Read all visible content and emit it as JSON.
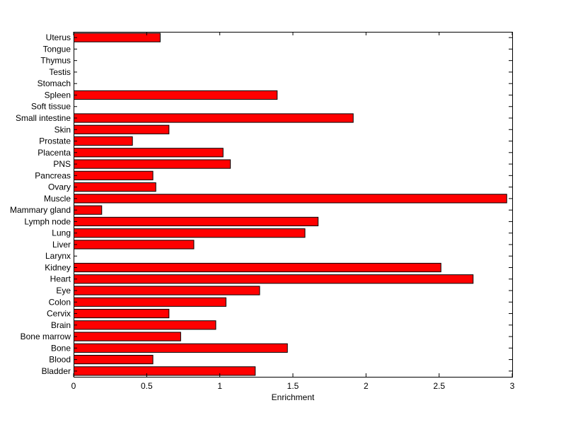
{
  "chart_data": {
    "type": "bar",
    "orientation": "horizontal",
    "title": "",
    "xlabel": "Enrichment",
    "ylabel": "",
    "xlim": [
      0,
      3
    ],
    "xticks": [
      0,
      0.5,
      1,
      1.5,
      2,
      2.5,
      3
    ],
    "xtick_labels": [
      "0",
      "0.5",
      "1",
      "1.5",
      "2",
      "2.5",
      "3"
    ],
    "grid": false,
    "legend": "none",
    "bar_color": "#ff0000",
    "bar_edge_color": "#000000",
    "categories": [
      "Uterus",
      "Tongue",
      "Thymus",
      "Testis",
      "Stomach",
      "Spleen",
      "Soft tissue",
      "Small intestine",
      "Skin",
      "Prostate",
      "Placenta",
      "PNS",
      "Pancreas",
      "Ovary",
      "Muscle",
      "Mammary gland",
      "Lymph node",
      "Lung",
      "Liver",
      "Larynx",
      "Kidney",
      "Heart",
      "Eye",
      "Colon",
      "Cervix",
      "Brain",
      "Bone marrow",
      "Bone",
      "Blood",
      "Bladder"
    ],
    "values": [
      0.59,
      0,
      0,
      0,
      0,
      1.39,
      0,
      1.91,
      0.65,
      0.4,
      1.02,
      1.07,
      0.54,
      0.56,
      2.96,
      0.19,
      1.67,
      1.58,
      0.82,
      0,
      2.51,
      2.73,
      1.27,
      1.04,
      0.65,
      0.97,
      0.73,
      1.46,
      0.54,
      1.24
    ]
  }
}
